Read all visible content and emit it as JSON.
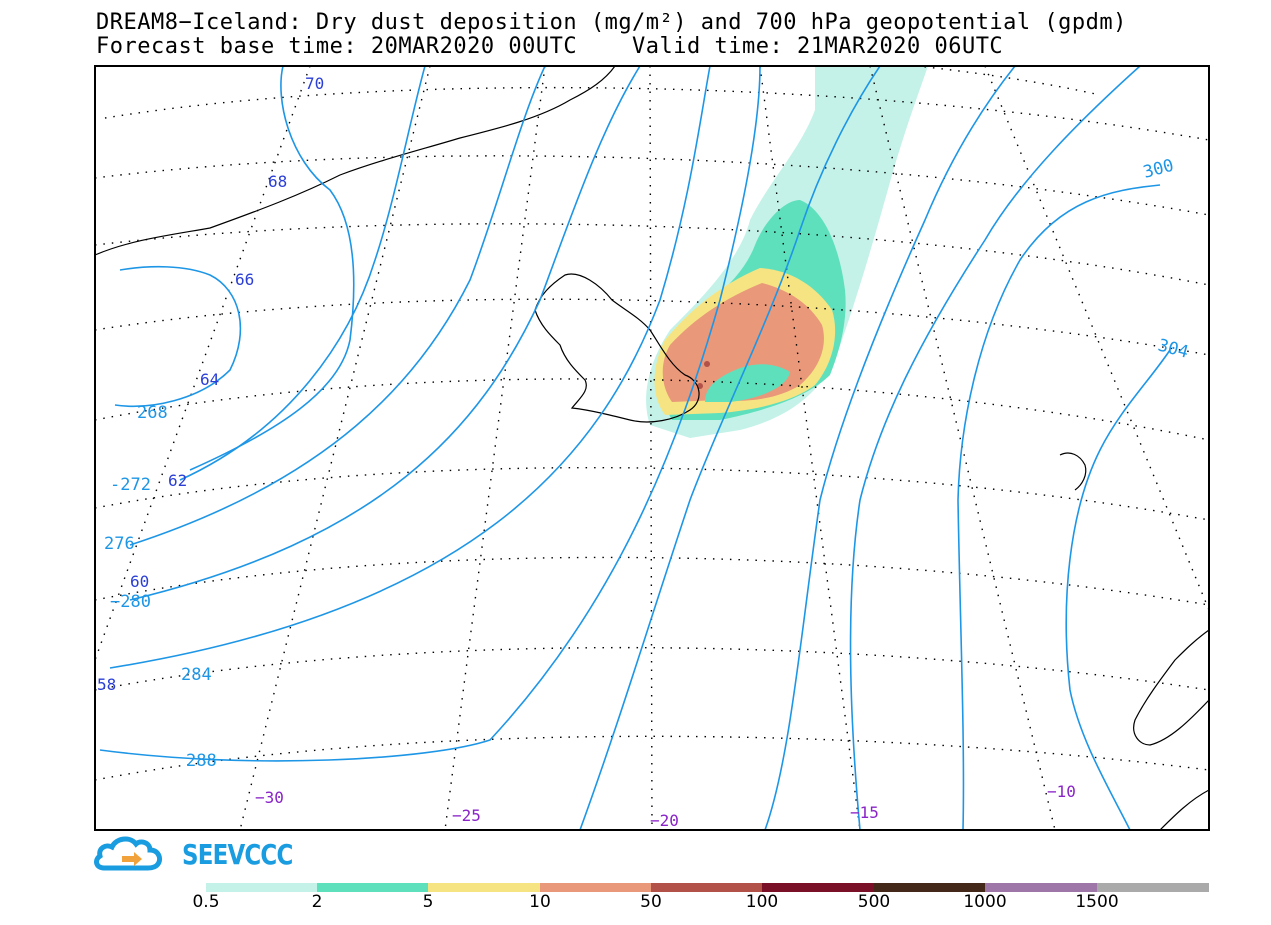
{
  "title": {
    "line1": "DREAM8−Iceland: Dry dust deposition (mg/m²) and 700 hPa geopotential (gpdm)",
    "line2": "Forecast base time: 20MAR2020 00UTC    Valid time: 21MAR2020 06UTC"
  },
  "logo": {
    "text": "SEEVCCC",
    "icon": "cloud-arrow-icon"
  },
  "latitude_labels": [
    "70",
    "68",
    "66",
    "64",
    "62",
    "60",
    "58"
  ],
  "longitude_labels": [
    "−30",
    "−25",
    "−20",
    "−15",
    "−10"
  ],
  "geopotential_labels": [
    "268",
    "-272",
    "276",
    "−280",
    "284",
    "288",
    "300",
    "304"
  ],
  "colorbar": {
    "levels": [
      "0.5",
      "2",
      "5",
      "10",
      "50",
      "100",
      "500",
      "1000",
      "1500"
    ],
    "colors": [
      "#c4f2e8",
      "#5fe0bd",
      "#f6e482",
      "#e9987a",
      "#b15147",
      "#7a0f28",
      "#44281a",
      "#9e77a8",
      "#aaaaaa"
    ]
  },
  "colors": {
    "contour": "#1e96e6",
    "lat_label": "#2b3fd6",
    "lon_label": "#8a24c8",
    "dust_light": "#c4f2e8",
    "dust_green": "#5fe0bd",
    "dust_yellow": "#f6e482",
    "dust_orange": "#e9987a",
    "dust_red": "#b15147"
  }
}
